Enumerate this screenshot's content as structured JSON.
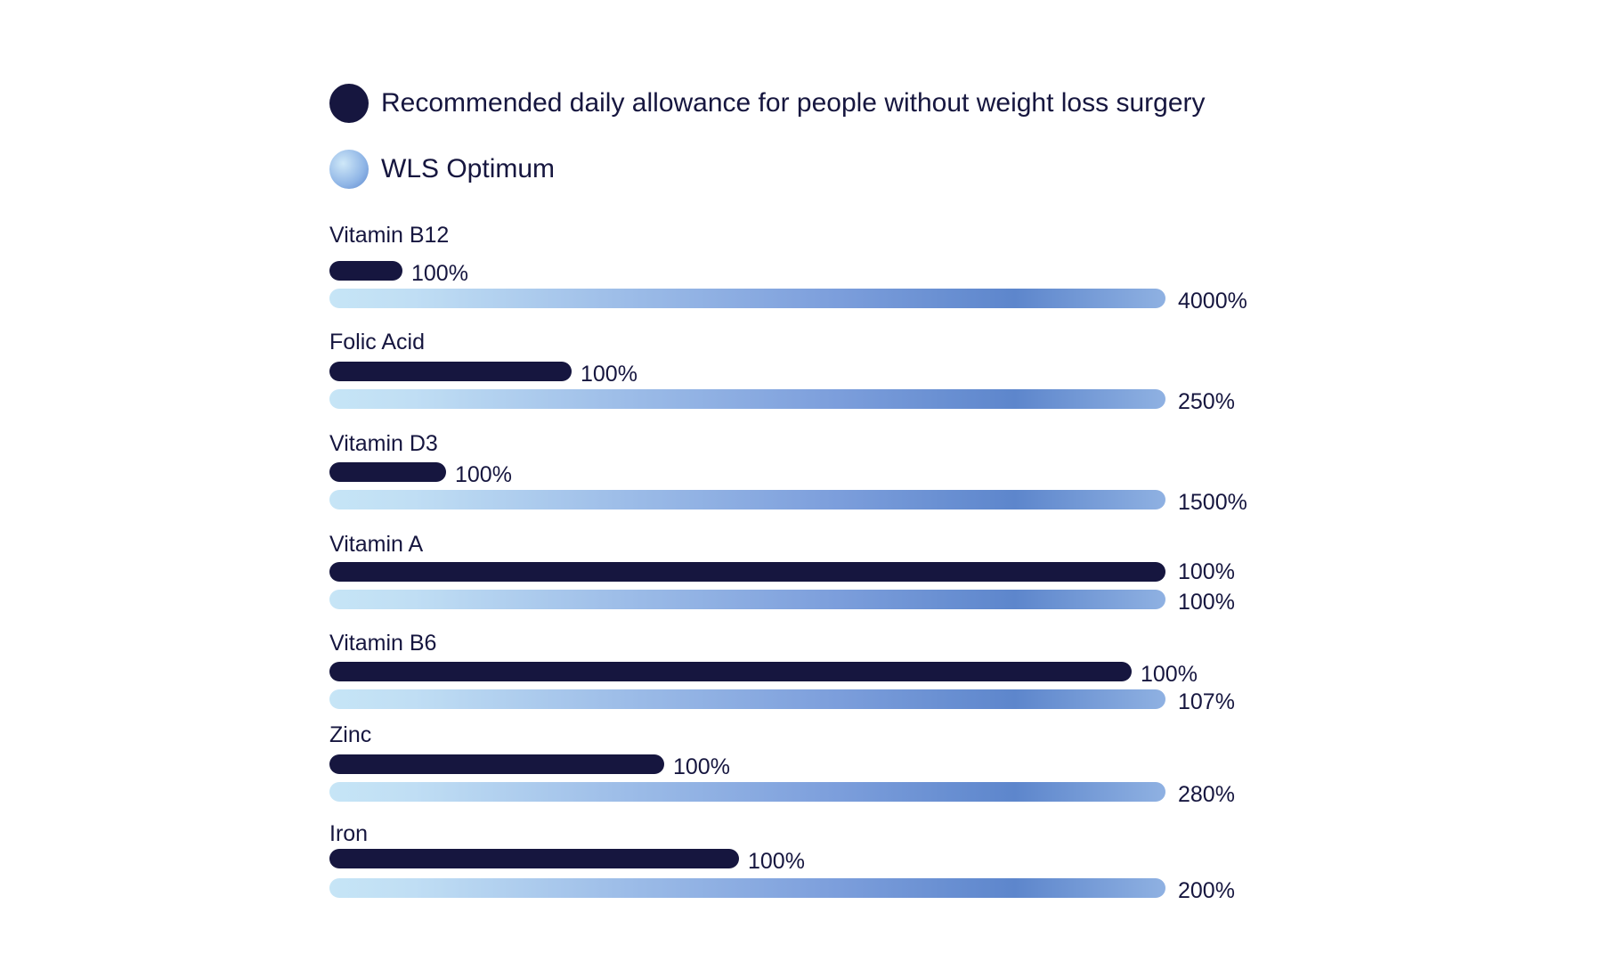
{
  "chart_data": {
    "type": "bar",
    "orientation": "horizontal",
    "legend": [
      {
        "name": "Recommended daily allowance for people without weight loss surgery",
        "color": "#16163f"
      },
      {
        "name": "WLS Optimum",
        "color": "#8fb1e2"
      }
    ],
    "legend_placement": "top-left",
    "grid": false,
    "categories": [
      "Vitamin B12",
      "Folic Acid",
      "Vitamin D3",
      "Vitamin A",
      "Vitamin B6",
      "Zinc",
      "Iron"
    ],
    "series": [
      {
        "name": "Recommended daily allowance for people without weight loss surgery",
        "labels": [
          "100%",
          "100%",
          "100%",
          "100%",
          "100%",
          "100%",
          "100%"
        ],
        "values": [
          100,
          100,
          100,
          100,
          100,
          100,
          100
        ],
        "bar_fill_fraction": [
          0.087,
          0.29,
          0.14,
          1.0,
          0.96,
          0.4,
          0.49
        ]
      },
      {
        "name": "WLS Optimum",
        "labels": [
          "4000%",
          "250%",
          "1500%",
          "100%",
          "107%",
          "280%",
          "200%"
        ],
        "values": [
          4000,
          250,
          1500,
          100,
          107,
          280,
          200
        ],
        "bar_fill_fraction": [
          1,
          1,
          1,
          1,
          1,
          1,
          1
        ]
      }
    ]
  }
}
